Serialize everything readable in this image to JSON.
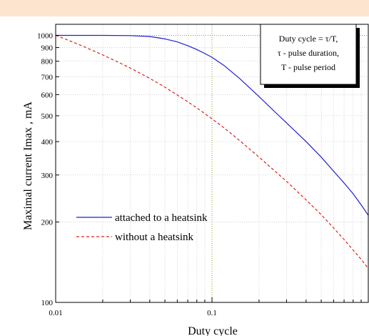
{
  "chart_data": {
    "type": "line",
    "title": "",
    "xlabel": "Duty cycle",
    "ylabel": "Maximal current  Imax , mA",
    "xscale": "log",
    "yscale": "log",
    "xlim": [
      0.01,
      1
    ],
    "ylim": [
      100,
      1100
    ],
    "grid": true,
    "x_ticks": [
      {
        "value": 0.01,
        "label": "0.01"
      },
      {
        "value": 0.1,
        "label": "0.1"
      }
    ],
    "y_ticks": [
      {
        "value": 100,
        "label": "100"
      },
      {
        "value": 200,
        "label": "200"
      },
      {
        "value": 300,
        "label": "300"
      },
      {
        "value": 400,
        "label": "400"
      },
      {
        "value": 500,
        "label": "500"
      },
      {
        "value": 600,
        "label": "600"
      },
      {
        "value": 700,
        "label": "700"
      },
      {
        "value": 800,
        "label": "800"
      },
      {
        "value": 900,
        "label": "900"
      },
      {
        "value": 1000,
        "label": "1000"
      }
    ],
    "reference_lines": [
      {
        "axis": "x",
        "value": 0.1,
        "color": "#9a9a2a"
      },
      {
        "axis": "y",
        "value": 1000,
        "color": "#9a9a2a"
      }
    ],
    "legend_position": "lower-left",
    "series": [
      {
        "name": "attached to a heatsink",
        "color": "#1f1fd6",
        "style": "solid",
        "x": [
          0.01,
          0.02,
          0.03,
          0.04,
          0.05,
          0.06,
          0.07,
          0.08,
          0.09,
          0.1,
          0.12,
          0.15,
          0.2,
          0.25,
          0.3,
          0.4,
          0.5,
          0.6,
          0.7,
          0.8,
          0.9,
          1.0
        ],
        "values": [
          1000,
          1000,
          998,
          990,
          970,
          945,
          915,
          885,
          855,
          828,
          770,
          690,
          590,
          520,
          470,
          400,
          350,
          310,
          280,
          255,
          232,
          212
        ]
      },
      {
        "name": "without a heatsink",
        "color": "#e02020",
        "style": "dashed",
        "x": [
          0.01,
          0.012,
          0.015,
          0.02,
          0.025,
          0.03,
          0.04,
          0.05,
          0.06,
          0.07,
          0.08,
          0.1,
          0.12,
          0.15,
          0.2,
          0.25,
          0.3,
          0.4,
          0.5,
          0.6,
          0.7,
          0.8,
          0.9,
          1.0
        ],
        "values": [
          1000,
          960,
          910,
          845,
          795,
          755,
          690,
          640,
          598,
          564,
          535,
          487,
          450,
          404,
          350,
          312,
          284,
          242,
          213,
          190,
          172,
          157,
          145,
          134
        ]
      }
    ],
    "annotation": {
      "lines": [
        "Duty cycle = τ/T,",
        "τ - pulse duration,",
        "T - pulse period"
      ]
    }
  }
}
